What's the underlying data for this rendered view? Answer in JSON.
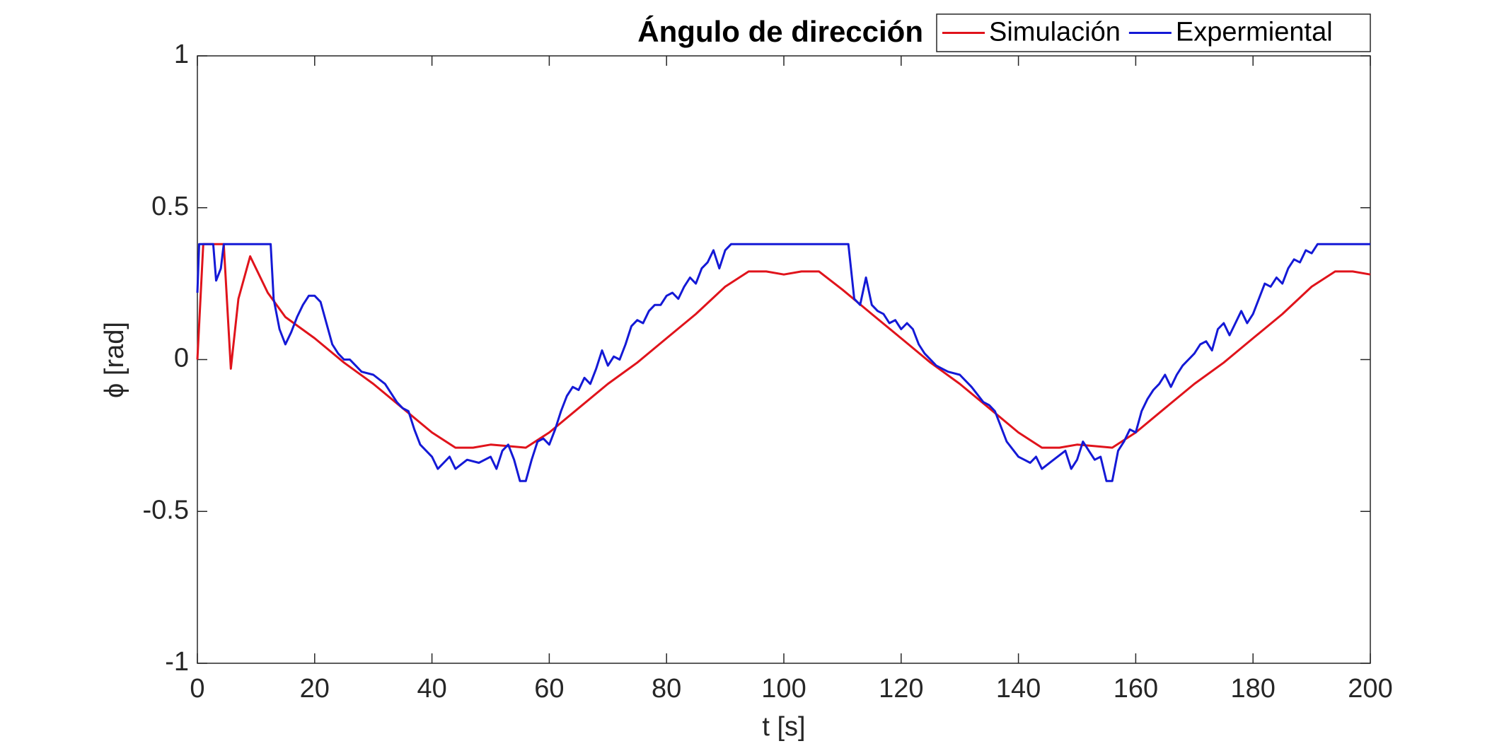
{
  "chart_data": {
    "type": "line",
    "title": "Ángulo de dirección",
    "xlabel": "t [s]",
    "ylabel": "ϕ [rad]",
    "xlim": [
      0,
      200
    ],
    "ylim": [
      -1,
      1
    ],
    "xticks": [
      0,
      20,
      40,
      60,
      80,
      100,
      120,
      140,
      160,
      180,
      200
    ],
    "yticks": [
      -1,
      -0.5,
      0,
      0.5,
      1
    ],
    "grid": false,
    "legend": "top-right",
    "series": [
      {
        "name": "Simulación",
        "color": "#e0131b",
        "x": [
          0,
          1,
          4.5,
          5.7,
          7,
          9,
          12,
          15,
          20,
          25,
          30,
          35,
          40,
          44,
          47,
          50,
          53,
          56,
          60,
          65,
          70,
          75,
          80,
          85,
          90,
          94,
          97,
          100,
          103,
          106,
          110,
          115,
          120,
          125,
          130,
          135,
          140,
          144,
          147,
          150,
          153,
          156,
          160,
          165,
          170,
          175,
          180,
          185,
          190,
          194,
          197,
          200
        ],
        "values": [
          0,
          0.38,
          0.38,
          -0.03,
          0.2,
          0.34,
          0.22,
          0.14,
          0.07,
          -0.01,
          -0.08,
          -0.16,
          -0.24,
          -0.29,
          -0.29,
          -0.28,
          -0.285,
          -0.29,
          -0.24,
          -0.16,
          -0.08,
          -0.01,
          0.07,
          0.15,
          0.24,
          0.29,
          0.29,
          0.28,
          0.29,
          0.29,
          0.23,
          0.15,
          0.07,
          -0.01,
          -0.08,
          -0.16,
          -0.24,
          -0.29,
          -0.29,
          -0.28,
          -0.285,
          -0.29,
          -0.24,
          -0.16,
          -0.08,
          -0.01,
          0.07,
          0.15,
          0.24,
          0.29,
          0.29,
          0.28
        ]
      },
      {
        "name": "Expermiental",
        "color": "#1419d6",
        "x": [
          0,
          0.3,
          2.7,
          3.2,
          4,
          4.5,
          12.5,
          13,
          14,
          15,
          16,
          17,
          18,
          19,
          20,
          21,
          22,
          23,
          24,
          25,
          26,
          27,
          28,
          30,
          32,
          34,
          35,
          36,
          37,
          38,
          40,
          41,
          42,
          43,
          44,
          46,
          48,
          50,
          51,
          52,
          53,
          54,
          55,
          56,
          57,
          58,
          59,
          60,
          61,
          62,
          63,
          64,
          65,
          66,
          67,
          68,
          69,
          70,
          71,
          72,
          73,
          74,
          75,
          76,
          77,
          78,
          79,
          80,
          81,
          82,
          83,
          84,
          85,
          86,
          87,
          88,
          89,
          90,
          91,
          111,
          112,
          113,
          114,
          115,
          116,
          117,
          118,
          119,
          120,
          121,
          122,
          123,
          124,
          125,
          126,
          127,
          128,
          130,
          132,
          134,
          135,
          136,
          138,
          140,
          141,
          142,
          143,
          144,
          146,
          148,
          149,
          150,
          151,
          152,
          153,
          154,
          155,
          156,
          157,
          158,
          159,
          160,
          161,
          162,
          163,
          164,
          165,
          166,
          167,
          168,
          169,
          170,
          171,
          172,
          173,
          174,
          175,
          176,
          177,
          178,
          179,
          180,
          181,
          182,
          183,
          184,
          185,
          186,
          187,
          188,
          189,
          190,
          191,
          200
        ],
        "values": [
          0.22,
          0.38,
          0.38,
          0.26,
          0.3,
          0.38,
          0.38,
          0.2,
          0.1,
          0.05,
          0.09,
          0.14,
          0.18,
          0.21,
          0.21,
          0.19,
          0.12,
          0.05,
          0.02,
          0,
          0,
          -0.02,
          -0.04,
          -0.05,
          -0.08,
          -0.14,
          -0.16,
          -0.17,
          -0.23,
          -0.28,
          -0.32,
          -0.36,
          -0.34,
          -0.32,
          -0.36,
          -0.33,
          -0.34,
          -0.32,
          -0.36,
          -0.3,
          -0.28,
          -0.33,
          -0.4,
          -0.4,
          -0.33,
          -0.27,
          -0.26,
          -0.28,
          -0.23,
          -0.17,
          -0.12,
          -0.09,
          -0.1,
          -0.06,
          -0.08,
          -0.03,
          0.03,
          -0.02,
          0.01,
          0,
          0.05,
          0.11,
          0.13,
          0.12,
          0.16,
          0.18,
          0.18,
          0.21,
          0.22,
          0.2,
          0.24,
          0.27,
          0.25,
          0.3,
          0.32,
          0.36,
          0.3,
          0.36,
          0.38,
          0.38,
          0.2,
          0.18,
          0.27,
          0.18,
          0.16,
          0.15,
          0.12,
          0.13,
          0.1,
          0.12,
          0.1,
          0.05,
          0.02,
          0,
          -0.02,
          -0.03,
          -0.04,
          -0.05,
          -0.09,
          -0.14,
          -0.15,
          -0.17,
          -0.27,
          -0.32,
          -0.33,
          -0.34,
          -0.32,
          -0.36,
          -0.33,
          -0.3,
          -0.36,
          -0.33,
          -0.27,
          -0.3,
          -0.33,
          -0.32,
          -0.4,
          -0.4,
          -0.3,
          -0.27,
          -0.23,
          -0.24,
          -0.17,
          -0.13,
          -0.1,
          -0.08,
          -0.05,
          -0.09,
          -0.05,
          -0.02,
          0,
          0.02,
          0.05,
          0.06,
          0.03,
          0.1,
          0.12,
          0.08,
          0.12,
          0.16,
          0.12,
          0.15,
          0.2,
          0.25,
          0.24,
          0.27,
          0.25,
          0.3,
          0.33,
          0.32,
          0.36,
          0.35,
          0.38,
          0.38
        ]
      }
    ]
  }
}
